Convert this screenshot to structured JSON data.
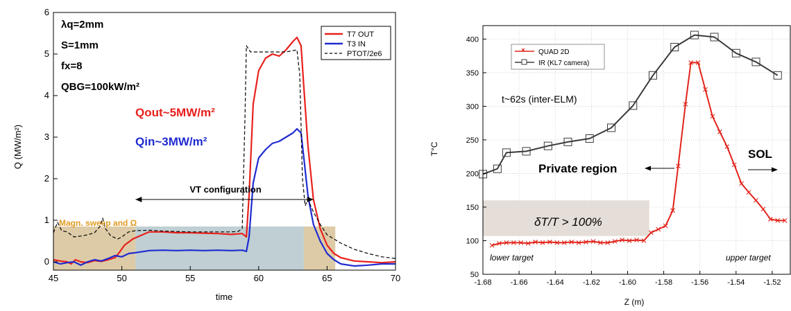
{
  "chart_data": [
    {
      "type": "line",
      "xlabel": "time",
      "ylabel": "Q (MW/m²)",
      "xlim": [
        45,
        70
      ],
      "ylim": [
        -0.2,
        6
      ],
      "x_ticks": [
        "45",
        "50",
        "55",
        "60",
        "65",
        "70"
      ],
      "y_ticks": [
        "0",
        "1",
        "2",
        "3",
        "4",
        "5",
        "6"
      ],
      "grid": false,
      "legend": {
        "placement": "top-right",
        "entries": [
          "T7 OUT",
          "T3 IN",
          "PTOT/2e6"
        ]
      },
      "params": [
        "λq=2mm",
        "S=1mm",
        "fx=8",
        "QBG=100kW/m²"
      ],
      "annotations": {
        "q_out": "Qout~5MW/m²",
        "q_in": "Qin~3MW/m²",
        "vt_config": "VT configuration",
        "sweep": "Magn. sweep and Ω"
      },
      "shaded_spans": [
        {
          "x0": 45,
          "x1": 51,
          "kind": "sweep",
          "color": "#d2b98a"
        },
        {
          "x0": 51,
          "x1": 63.3,
          "kind": "vt",
          "color": "#a9bfc4"
        },
        {
          "x0": 63.3,
          "x1": 65.6,
          "kind": "sweep",
          "color": "#d2b98a"
        }
      ],
      "vt_arrow_range": [
        51,
        64
      ],
      "series": [
        {
          "name": "T7 OUT",
          "color": "#e8201c",
          "points": [
            [
              45,
              0.05
            ],
            [
              45.5,
              0.02
            ],
            [
              46,
              0.0
            ],
            [
              46.3,
              -0.05
            ],
            [
              46.6,
              0.05
            ],
            [
              47,
              0.0
            ],
            [
              47.5,
              -0.02
            ],
            [
              48,
              0.03
            ],
            [
              48.5,
              0.01
            ],
            [
              49,
              0.05
            ],
            [
              49.5,
              0.1
            ],
            [
              49.8,
              0.22
            ],
            [
              50.2,
              0.4
            ],
            [
              50.8,
              0.55
            ],
            [
              51.3,
              0.62
            ],
            [
              52,
              0.72
            ],
            [
              53,
              0.72
            ],
            [
              54,
              0.7
            ],
            [
              55,
              0.7
            ],
            [
              56,
              0.69
            ],
            [
              57,
              0.68
            ],
            [
              58,
              0.66
            ],
            [
              58.8,
              0.68
            ],
            [
              59.1,
              0.6
            ],
            [
              59.3,
              1.6
            ],
            [
              59.6,
              3.8
            ],
            [
              60,
              4.6
            ],
            [
              60.5,
              4.9
            ],
            [
              61,
              5.0
            ],
            [
              61.5,
              4.95
            ],
            [
              62,
              5.1
            ],
            [
              62.5,
              5.3
            ],
            [
              62.8,
              5.4
            ],
            [
              63.1,
              5.2
            ],
            [
              63.3,
              4.2
            ],
            [
              63.6,
              2.8
            ],
            [
              64,
              1.5
            ],
            [
              64.5,
              0.8
            ],
            [
              65,
              0.4
            ],
            [
              65.5,
              0.2
            ],
            [
              66,
              0.1
            ],
            [
              67,
              0.02
            ],
            [
              68,
              0.0
            ],
            [
              69,
              -0.02
            ],
            [
              70,
              0.0
            ]
          ]
        },
        {
          "name": "T3 IN",
          "color": "#1f2bd0",
          "points": [
            [
              45,
              0.0
            ],
            [
              45.5,
              -0.05
            ],
            [
              46,
              -0.02
            ],
            [
              46.5,
              0.0
            ],
            [
              47,
              -0.08
            ],
            [
              47.5,
              0.0
            ],
            [
              48,
              0.05
            ],
            [
              48.5,
              0.02
            ],
            [
              49,
              0.08
            ],
            [
              49.5,
              0.15
            ],
            [
              50,
              0.12
            ],
            [
              50.5,
              0.2
            ],
            [
              51,
              0.22
            ],
            [
              52,
              0.27
            ],
            [
              53,
              0.28
            ],
            [
              54,
              0.27
            ],
            [
              55,
              0.28
            ],
            [
              56,
              0.27
            ],
            [
              57,
              0.28
            ],
            [
              58,
              0.27
            ],
            [
              58.8,
              0.28
            ],
            [
              59.1,
              0.25
            ],
            [
              59.3,
              0.6
            ],
            [
              59.6,
              1.9
            ],
            [
              60,
              2.5
            ],
            [
              60.5,
              2.7
            ],
            [
              61,
              2.85
            ],
            [
              61.5,
              2.9
            ],
            [
              62,
              3.0
            ],
            [
              62.5,
              3.1
            ],
            [
              62.8,
              3.2
            ],
            [
              63.1,
              3.1
            ],
            [
              63.3,
              2.5
            ],
            [
              63.6,
              1.6
            ],
            [
              64,
              0.9
            ],
            [
              64.5,
              0.5
            ],
            [
              65,
              0.2
            ],
            [
              65.5,
              0.05
            ],
            [
              66,
              -0.05
            ],
            [
              67,
              -0.1
            ],
            [
              68,
              -0.08
            ],
            [
              69,
              -0.05
            ],
            [
              70,
              -0.05
            ]
          ]
        },
        {
          "name": "PTOT/2e6",
          "color": "#000000",
          "dashed": true,
          "points": [
            [
              45,
              0.7
            ],
            [
              45.3,
              0.95
            ],
            [
              45.6,
              0.75
            ],
            [
              46,
              0.72
            ],
            [
              46.5,
              0.6
            ],
            [
              47,
              0.62
            ],
            [
              47.5,
              0.65
            ],
            [
              48,
              0.7
            ],
            [
              48.4,
              0.85
            ],
            [
              48.6,
              1.05
            ],
            [
              48.8,
              0.8
            ],
            [
              49.2,
              0.62
            ],
            [
              49.7,
              0.55
            ],
            [
              50,
              0.6
            ],
            [
              50.5,
              0.72
            ],
            [
              51,
              0.75
            ],
            [
              52,
              0.76
            ],
            [
              53,
              0.74
            ],
            [
              54,
              0.73
            ],
            [
              55,
              0.72
            ],
            [
              56,
              0.72
            ],
            [
              57,
              0.72
            ],
            [
              58,
              0.72
            ],
            [
              58.5,
              0.73
            ],
            [
              58.8,
              0.8
            ],
            [
              59,
              3.5
            ],
            [
              59.1,
              5.2
            ],
            [
              59.4,
              5.05
            ],
            [
              60,
              5.05
            ],
            [
              61,
              5.05
            ],
            [
              62,
              5.05
            ],
            [
              62.8,
              5.1
            ],
            [
              63,
              4.5
            ],
            [
              63.2,
              2.0
            ],
            [
              63.4,
              1.35
            ],
            [
              63.6,
              1.5
            ],
            [
              64,
              1.2
            ],
            [
              64.5,
              0.9
            ],
            [
              65,
              0.65
            ],
            [
              66,
              0.45
            ],
            [
              67,
              0.3
            ],
            [
              68,
              0.2
            ],
            [
              69,
              0.12
            ],
            [
              70,
              0.08
            ]
          ]
        }
      ]
    },
    {
      "type": "line",
      "xlabel": "Z (m)",
      "ylabel": "T°C",
      "xlim": [
        -1.68,
        -1.51
      ],
      "ylim": [
        50,
        420
      ],
      "x_ticks": [
        "-1.68",
        "-1.66",
        "-1.64",
        "-1.62",
        "-1.60",
        "-1.58",
        "-1.56",
        "-1.54",
        "-1.52"
      ],
      "y_ticks": [
        "50",
        "100",
        "150",
        "200",
        "250",
        "300",
        "350",
        "400"
      ],
      "grid": true,
      "legend": {
        "placement": "top-left",
        "entries": [
          "QUAD 2D",
          "IR (KL7 camera)"
        ]
      },
      "annotations": {
        "time_label": "t~62s (inter-ELM)",
        "private_region": "Private region",
        "sol": "SOL",
        "lower_target": "lower target",
        "upper_target": "upper target",
        "delta_box": "δT/T > 100%"
      },
      "shaded_box": {
        "x0": -1.68,
        "x1": -1.588,
        "y0": 107,
        "y1": 160,
        "color": "#e0d7d0"
      },
      "series": [
        {
          "name": "IR (KL7 camera)",
          "color": "#3a3a3a",
          "marker": "square",
          "points": [
            [
              -1.68,
              199
            ],
            [
              -1.672,
              207
            ],
            [
              -1.667,
              231
            ],
            [
              -1.656,
              233
            ],
            [
              -1.644,
              241
            ],
            [
              -1.633,
              247
            ],
            [
              -1.621,
              252
            ],
            [
              -1.609,
              268
            ],
            [
              -1.597,
              301
            ],
            [
              -1.586,
              346
            ],
            [
              -1.574,
              388
            ],
            [
              -1.563,
              406
            ],
            [
              -1.552,
              403
            ],
            [
              -1.54,
              379
            ],
            [
              -1.529,
              366
            ],
            [
              -1.517,
              346
            ]
          ]
        },
        {
          "name": "QUAD 2D",
          "color": "#e2231a",
          "marker": "x",
          "points": [
            [
              -1.675,
              93
            ],
            [
              -1.671,
              96
            ],
            [
              -1.667,
              97
            ],
            [
              -1.663,
              97
            ],
            [
              -1.659,
              97
            ],
            [
              -1.655,
              96
            ],
            [
              -1.651,
              98
            ],
            [
              -1.647,
              97
            ],
            [
              -1.643,
              98
            ],
            [
              -1.639,
              97
            ],
            [
              -1.635,
              97
            ],
            [
              -1.631,
              98
            ],
            [
              -1.627,
              97
            ],
            [
              -1.623,
              98
            ],
            [
              -1.619,
              99
            ],
            [
              -1.615,
              97
            ],
            [
              -1.611,
              97
            ],
            [
              -1.607,
              99
            ],
            [
              -1.603,
              101
            ],
            [
              -1.599,
              100
            ],
            [
              -1.595,
              101
            ],
            [
              -1.591,
              100
            ],
            [
              -1.587,
              112
            ],
            [
              -1.583,
              117
            ],
            [
              -1.579,
              122
            ],
            [
              -1.575,
              145
            ],
            [
              -1.572,
              211
            ],
            [
              -1.568,
              303
            ],
            [
              -1.565,
              365
            ],
            [
              -1.561,
              365
            ],
            [
              -1.557,
              325
            ],
            [
              -1.553,
              285
            ],
            [
              -1.549,
              262
            ],
            [
              -1.545,
              240
            ],
            [
              -1.541,
              213
            ],
            [
              -1.537,
              185
            ],
            [
              -1.533,
              172
            ],
            [
              -1.529,
              160
            ],
            [
              -1.525,
              147
            ],
            [
              -1.521,
              132
            ],
            [
              -1.517,
              130
            ],
            [
              -1.513,
              130
            ]
          ]
        }
      ]
    }
  ]
}
